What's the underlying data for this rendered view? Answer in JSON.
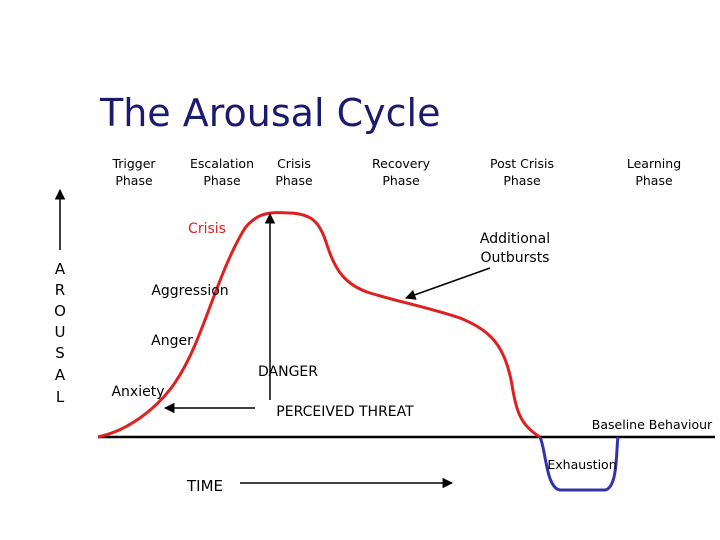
{
  "title": "The Arousal Cycle",
  "phases": [
    {
      "line1": "Trigger",
      "line2": "Phase"
    },
    {
      "line1": "Escalation",
      "line2": "Phase"
    },
    {
      "line1": "Crisis",
      "line2": "Phase"
    },
    {
      "line1": "Recovery",
      "line2": "Phase"
    },
    {
      "line1": "Post Crisis",
      "line2": "Phase"
    },
    {
      "line1": "Learning",
      "line2": "Phase"
    }
  ],
  "axis_letters": [
    "A",
    "R",
    "O",
    "U",
    "S",
    "A",
    "L"
  ],
  "labels": {
    "crisis": "Crisis",
    "aggression": "Aggression",
    "anger": "Anger",
    "anxiety": "Anxiety",
    "danger": "DANGER",
    "perceived_threat": "PERCEIVED THREAT",
    "outbursts_1": "Additional",
    "outbursts_2": "Outbursts",
    "baseline": "Baseline Behaviour",
    "exhaustion": "Exhaustion",
    "time": "TIME"
  }
}
